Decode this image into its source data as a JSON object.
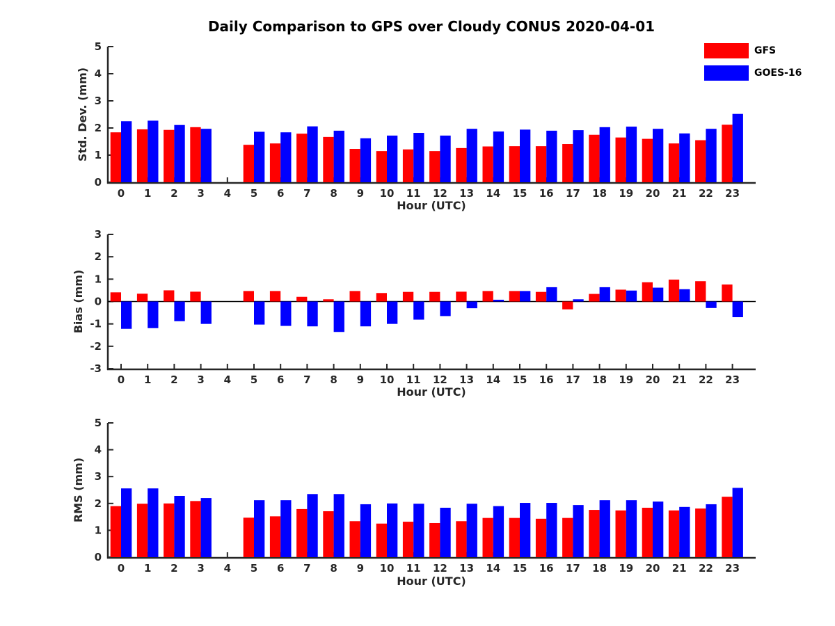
{
  "title": "Daily Comparison to GPS over Cloudy CONUS 2020-04-01",
  "legend": {
    "position": "top-right",
    "items": [
      {
        "label": "GFS",
        "color": "#ff0000"
      },
      {
        "label": "GOES-16",
        "color": "#0000ff"
      }
    ]
  },
  "colors": {
    "gfs": "#ff0000",
    "goes16": "#0000ff",
    "axis": "#262626",
    "title_text": "#000000"
  },
  "chart_data": [
    {
      "type": "bar",
      "name": "std-dev",
      "ylabel": "Std. Dev. (mm)",
      "xlabel": "Hour (UTC)",
      "categories": [
        0,
        1,
        2,
        3,
        4,
        5,
        6,
        7,
        8,
        9,
        10,
        11,
        12,
        13,
        14,
        15,
        16,
        17,
        18,
        19,
        20,
        21,
        22,
        23
      ],
      "ylim": [
        0,
        5
      ],
      "yticks": [
        0,
        1,
        2,
        3,
        4,
        5
      ],
      "grid": false,
      "series": [
        {
          "name": "GFS",
          "color": "#ff0000",
          "values": [
            1.84,
            1.95,
            1.93,
            2.03,
            null,
            1.38,
            1.43,
            1.79,
            1.67,
            1.23,
            1.15,
            1.21,
            1.15,
            1.26,
            1.32,
            1.33,
            1.33,
            1.41,
            1.75,
            1.65,
            1.6,
            1.43,
            1.55,
            2.12
          ]
        },
        {
          "name": "GOES-16",
          "color": "#0000ff",
          "values": [
            2.25,
            2.27,
            2.11,
            1.97,
            null,
            1.86,
            1.84,
            2.06,
            1.9,
            1.62,
            1.72,
            1.82,
            1.72,
            1.97,
            1.87,
            1.94,
            1.9,
            1.92,
            2.03,
            2.05,
            1.97,
            1.8,
            1.97,
            2.52
          ]
        }
      ]
    },
    {
      "type": "bar",
      "name": "bias",
      "ylabel": "Bias (mm)",
      "xlabel": "Hour (UTC)",
      "categories": [
        0,
        1,
        2,
        3,
        4,
        5,
        6,
        7,
        8,
        9,
        10,
        11,
        12,
        13,
        14,
        15,
        16,
        17,
        18,
        19,
        20,
        21,
        22,
        23
      ],
      "ylim": [
        -3,
        3
      ],
      "yticks": [
        -3,
        -2,
        -1,
        0,
        1,
        2,
        3
      ],
      "grid": false,
      "zero_line": true,
      "series": [
        {
          "name": "GFS",
          "color": "#ff0000",
          "values": [
            0.41,
            0.35,
            0.5,
            0.44,
            null,
            0.47,
            0.47,
            0.21,
            0.1,
            0.47,
            0.38,
            0.43,
            0.43,
            0.44,
            0.47,
            0.47,
            0.43,
            -0.35,
            0.34,
            0.53,
            0.86,
            0.98,
            0.91,
            0.76
          ]
        },
        {
          "name": "GOES-16",
          "color": "#0000ff",
          "values": [
            -1.22,
            -1.19,
            -0.88,
            -1.0,
            null,
            -1.03,
            -1.09,
            -1.11,
            -1.36,
            -1.11,
            -1.0,
            -0.81,
            -0.65,
            -0.3,
            0.08,
            0.47,
            0.64,
            0.1,
            0.64,
            0.49,
            0.62,
            0.55,
            -0.29,
            -0.7
          ]
        }
      ]
    },
    {
      "type": "bar",
      "name": "rms",
      "ylabel": "RMS (mm)",
      "xlabel": "Hour (UTC)",
      "categories": [
        0,
        1,
        2,
        3,
        4,
        5,
        6,
        7,
        8,
        9,
        10,
        11,
        12,
        13,
        14,
        15,
        16,
        17,
        18,
        19,
        20,
        21,
        22,
        23
      ],
      "ylim": [
        0,
        5
      ],
      "yticks": [
        0,
        1,
        2,
        3,
        4,
        5
      ],
      "grid": false,
      "series": [
        {
          "name": "GFS",
          "color": "#ff0000",
          "values": [
            1.9,
            1.99,
            2.0,
            2.09,
            null,
            1.47,
            1.52,
            1.79,
            1.71,
            1.34,
            1.25,
            1.32,
            1.27,
            1.34,
            1.46,
            1.46,
            1.43,
            1.46,
            1.76,
            1.74,
            1.84,
            1.74,
            1.81,
            2.25
          ]
        },
        {
          "name": "GOES-16",
          "color": "#0000ff",
          "values": [
            2.56,
            2.56,
            2.28,
            2.2,
            null,
            2.12,
            2.12,
            2.35,
            2.35,
            1.97,
            2.0,
            1.99,
            1.84,
            1.99,
            1.9,
            2.02,
            2.02,
            1.94,
            2.12,
            2.12,
            2.07,
            1.87,
            1.97,
            2.58
          ]
        }
      ]
    }
  ]
}
